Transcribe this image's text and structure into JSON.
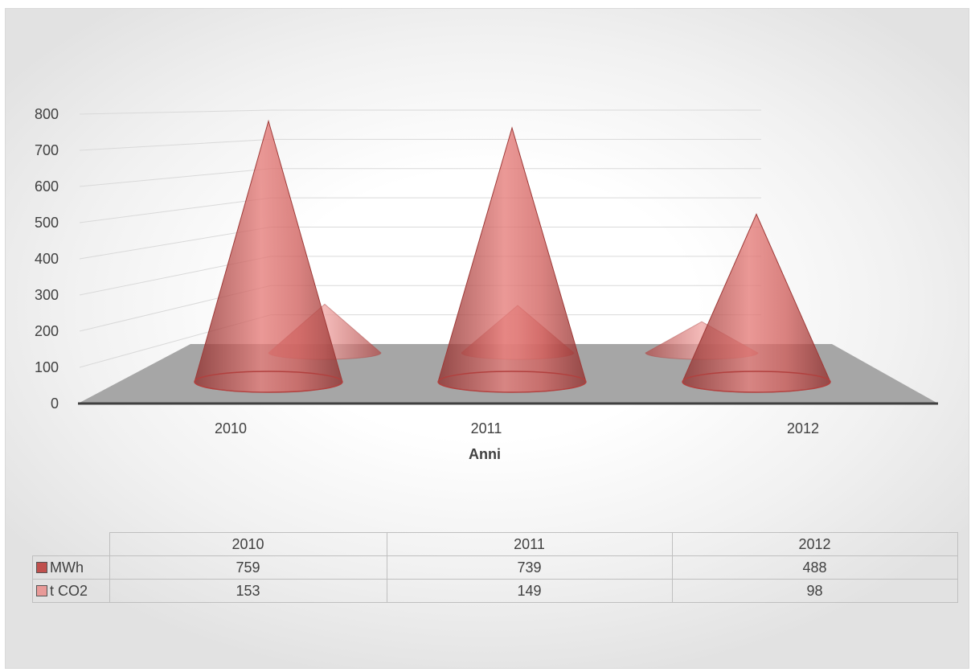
{
  "chart_data": {
    "type": "bar",
    "style": "3d-cone",
    "categories": [
      "2010",
      "2011",
      "2012"
    ],
    "series": [
      {
        "name": "MWh",
        "values": [
          759,
          739,
          488
        ],
        "color": "#c0504d"
      },
      {
        "name": "t CO2",
        "values": [
          153,
          149,
          98
        ],
        "color": "#e89a98"
      }
    ],
    "title": "",
    "xlabel": "Anni",
    "ylabel": "",
    "ylim": [
      0,
      800
    ],
    "yticks": [
      0,
      100,
      200,
      300,
      400,
      500,
      600,
      700,
      800
    ],
    "grid": true,
    "legend": "data-table-below",
    "data_table": {
      "headers": [
        "2010",
        "2011",
        "2012"
      ],
      "rows": [
        {
          "label": "MWh",
          "values": [
            "759",
            "739",
            "488"
          ],
          "key_color": "#c0504d"
        },
        {
          "label": "t CO2",
          "values": [
            "153",
            "149",
            "98"
          ],
          "key_color": "#e89a98"
        }
      ]
    }
  }
}
